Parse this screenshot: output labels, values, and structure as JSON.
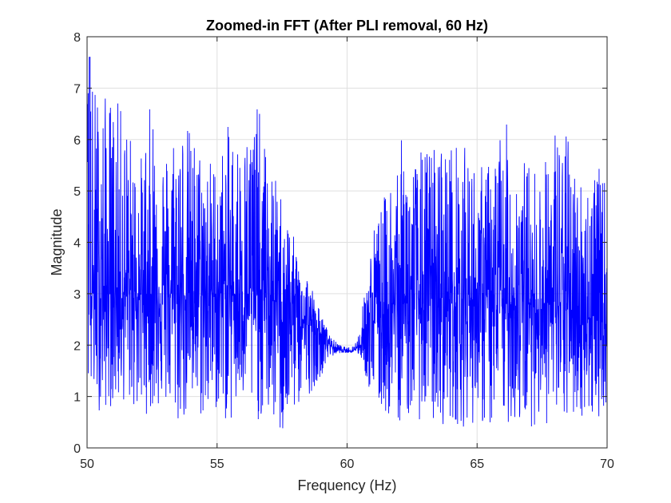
{
  "chart_data": {
    "type": "line",
    "title": "Zoomed-in FFT (After PLI removal, 60 Hz)",
    "xlabel": "Frequency (Hz)",
    "ylabel": "Magnitude",
    "xlim": [
      50,
      70
    ],
    "ylim": [
      0,
      8
    ],
    "xticks": [
      50,
      55,
      60,
      65,
      70
    ],
    "yticks": [
      0,
      1,
      2,
      3,
      4,
      5,
      6,
      7,
      8
    ],
    "grid": true,
    "legend": "none",
    "series": [
      {
        "color": "#0000ff",
        "x": [
          50.0,
          50.5,
          51.0,
          51.5,
          52.0,
          52.5,
          53.0,
          53.5,
          54.0,
          54.5,
          55.0,
          55.5,
          56.0,
          56.5,
          57.0,
          57.5,
          58.0,
          58.5,
          59.0,
          59.25,
          59.5,
          59.75,
          60.0,
          60.25,
          60.5,
          60.75,
          61.0,
          61.5,
          62.0,
          62.5,
          63.0,
          63.5,
          64.0,
          64.5,
          65.0,
          65.5,
          66.0,
          66.5,
          67.0,
          67.5,
          68.0,
          68.5,
          69.0,
          69.5,
          70.0
        ],
        "y_mean": [
          3.0,
          3.0,
          3.0,
          3.0,
          3.0,
          3.0,
          3.0,
          3.0,
          3.0,
          3.0,
          3.0,
          3.0,
          3.0,
          3.0,
          2.9,
          2.8,
          2.6,
          2.4,
          2.2,
          2.05,
          1.95,
          1.9,
          1.88,
          1.9,
          2.0,
          2.2,
          2.5,
          2.7,
          2.8,
          2.9,
          2.9,
          2.9,
          2.9,
          2.9,
          2.9,
          2.9,
          2.8,
          2.8,
          2.8,
          2.8,
          2.8,
          2.7,
          2.6,
          2.5,
          2.4
        ],
        "y_upper": [
          7.6,
          6.9,
          6.9,
          6.5,
          5.5,
          6.9,
          5.8,
          6.7,
          6.2,
          5.8,
          5.6,
          6.4,
          6.0,
          6.9,
          5.5,
          5.0,
          4.0,
          3.4,
          2.6,
          2.3,
          2.1,
          2.0,
          1.95,
          2.0,
          2.3,
          3.5,
          4.3,
          5.0,
          6.1,
          5.6,
          5.9,
          6.0,
          6.0,
          5.9,
          5.5,
          5.6,
          6.5,
          5.8,
          5.6,
          5.4,
          6.4,
          6.1,
          5.3,
          5.6,
          5.2
        ],
        "y_lower": [
          1.0,
          0.7,
          0.8,
          0.9,
          0.6,
          0.7,
          0.8,
          0.4,
          0.6,
          0.5,
          0.7,
          0.4,
          0.8,
          0.5,
          0.6,
          0.1,
          0.7,
          1.0,
          1.4,
          1.7,
          1.8,
          1.85,
          1.85,
          1.85,
          1.8,
          1.3,
          0.8,
          0.6,
          0.5,
          0.6,
          0.5,
          0.4,
          0.5,
          0.4,
          0.5,
          0.3,
          0.5,
          0.4,
          0.4,
          0.5,
          0.3,
          0.5,
          0.6,
          0.5,
          0.8
        ]
      }
    ]
  }
}
